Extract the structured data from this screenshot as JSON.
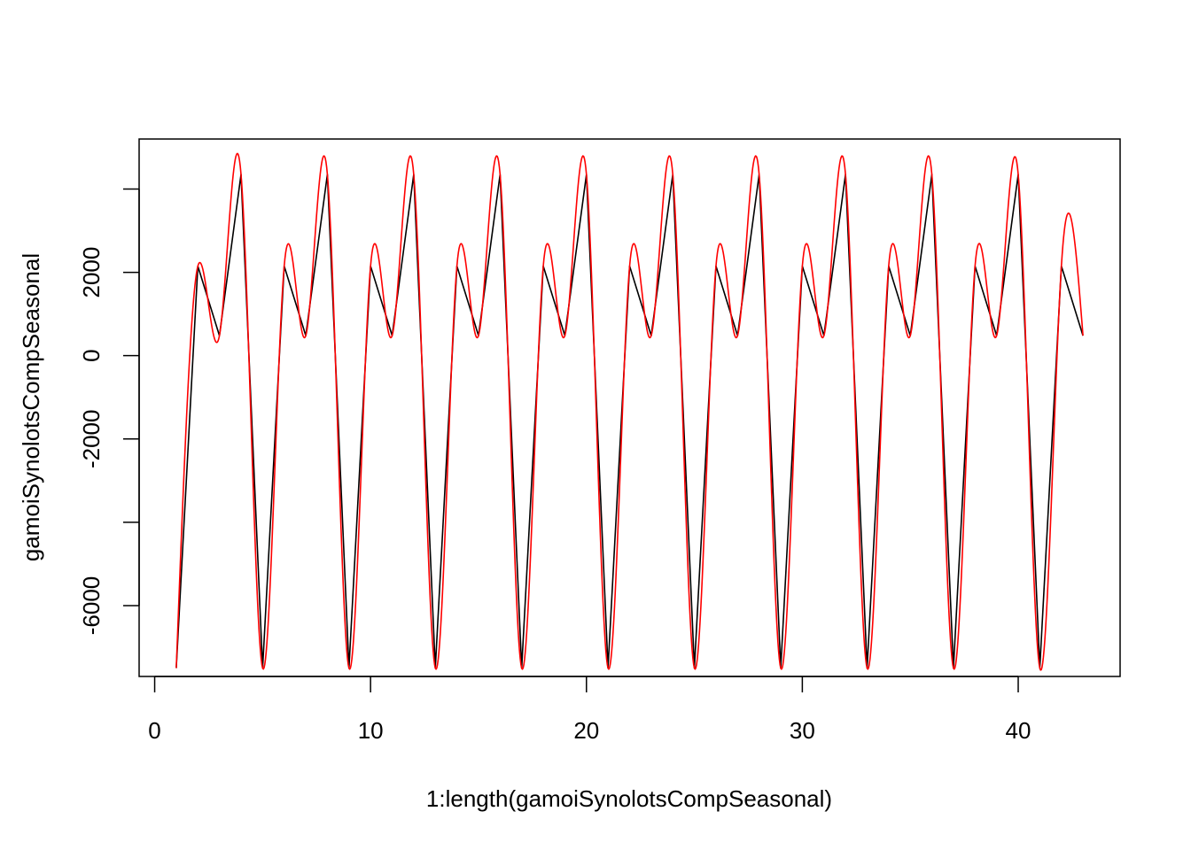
{
  "chart_data": {
    "type": "line",
    "title": "",
    "xlabel": "1:length(gamoiSynolotsCompSeasonal)",
    "ylabel": "gamoiSynolotsCompSeasonal",
    "xlim": [
      -0.72,
      44.72
    ],
    "ylim": [
      -7700,
      5200
    ],
    "x_ticks": [
      0,
      10,
      20,
      30,
      40
    ],
    "y_ticks": [
      -6000,
      -4000,
      -2000,
      0,
      2000,
      4000
    ],
    "y_tick_labels": [
      "-6000",
      "",
      "-2000",
      "0",
      "2000",
      ""
    ],
    "grid": false,
    "legend": "none",
    "series": [
      {
        "color": "#000000",
        "style": "line",
        "x": [
          1,
          2,
          3,
          4,
          5,
          6,
          7,
          8,
          9,
          10,
          11,
          12,
          13,
          14,
          15,
          16,
          17,
          18,
          19,
          20,
          21,
          22,
          23,
          24,
          25,
          26,
          27,
          28,
          29,
          30,
          31,
          32,
          33,
          34,
          35,
          36,
          37,
          38,
          39,
          40,
          41,
          42,
          43
        ],
        "values": [
          -7500,
          2150,
          480,
          4350,
          -7500,
          2150,
          480,
          4350,
          -7500,
          2150,
          480,
          4350,
          -7500,
          2150,
          480,
          4350,
          -7500,
          2150,
          480,
          4350,
          -7500,
          2150,
          480,
          4350,
          -7500,
          2150,
          480,
          4350,
          -7500,
          2150,
          480,
          4350,
          -7500,
          2150,
          480,
          4350,
          -7500,
          2150,
          480,
          4350,
          -7500,
          2150,
          480
        ]
      },
      {
        "color": "#ff0000",
        "style": "spline",
        "x": [
          1,
          2,
          3,
          4,
          5,
          6,
          7,
          8,
          9,
          10,
          11,
          12,
          13,
          14,
          15,
          16,
          17,
          18,
          19,
          20,
          21,
          22,
          23,
          24,
          25,
          26,
          27,
          28,
          29,
          30,
          31,
          32,
          33,
          34,
          35,
          36,
          37,
          38,
          39,
          40,
          41,
          42,
          43
        ],
        "values": [
          -7500,
          2150,
          480,
          4350,
          -7500,
          2150,
          480,
          4350,
          -7500,
          2150,
          480,
          4350,
          -7500,
          2150,
          480,
          4350,
          -7500,
          2150,
          480,
          4350,
          -7500,
          2150,
          480,
          4350,
          -7500,
          2150,
          480,
          4350,
          -7500,
          2150,
          480,
          4350,
          -7500,
          2150,
          480,
          4350,
          -7500,
          2150,
          480,
          4350,
          -7500,
          2150,
          480
        ]
      }
    ]
  }
}
